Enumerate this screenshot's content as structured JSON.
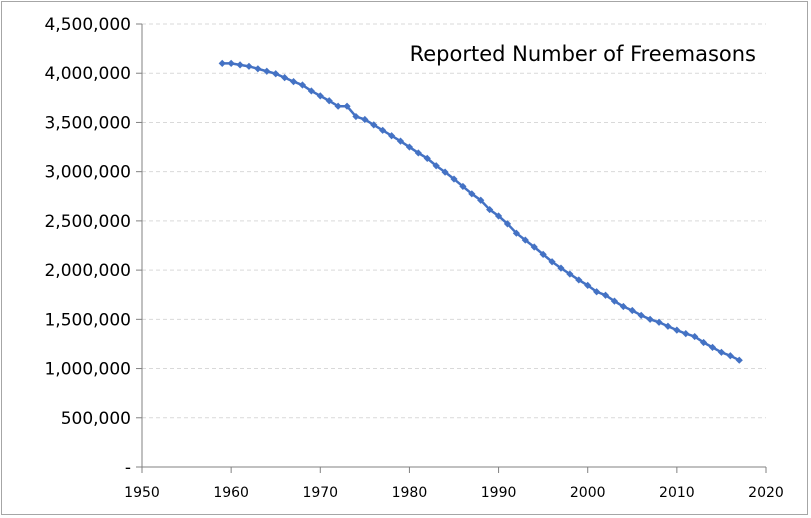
{
  "chart_data": {
    "type": "line",
    "title": "Reported Number of Freemasons",
    "xlabel": "",
    "ylabel": "",
    "xlim": [
      1950,
      2020
    ],
    "ylim": [
      0,
      4500000
    ],
    "x_ticks": [
      "1950",
      "1960",
      "1970",
      "1980",
      "1990",
      "2000",
      "2010",
      "2020"
    ],
    "y_ticks": [
      "-",
      "500,000",
      "1,000,000",
      "1,500,000",
      "2,000,000",
      "2,500,000",
      "3,000,000",
      "3,500,000",
      "4,000,000",
      "4,500,000"
    ],
    "grid": "horizontal dashed",
    "legend": "none",
    "series": [
      {
        "color": "#4472c4",
        "marker": "diamond",
        "x": [
          1959,
          1960,
          1961,
          1962,
          1963,
          1964,
          1965,
          1966,
          1967,
          1968,
          1969,
          1970,
          1971,
          1972,
          1973,
          1974,
          1975,
          1976,
          1977,
          1978,
          1979,
          1980,
          1981,
          1982,
          1983,
          1984,
          1985,
          1986,
          1987,
          1988,
          1989,
          1990,
          1991,
          1992,
          1993,
          1994,
          1995,
          1996,
          1997,
          1998,
          1999,
          2000,
          2001,
          2002,
          2003,
          2004,
          2005,
          2006,
          2007,
          2008,
          2009,
          2010,
          2011,
          2012,
          2013,
          2014,
          2015,
          2016,
          2017
        ],
        "values": [
          4100000,
          4100000,
          4085000,
          4070000,
          4045000,
          4020000,
          3995000,
          3955000,
          3915000,
          3880000,
          3820000,
          3770000,
          3720000,
          3665000,
          3665000,
          3560000,
          3530000,
          3475000,
          3420000,
          3365000,
          3310000,
          3250000,
          3190000,
          3135000,
          3060000,
          2995000,
          2925000,
          2850000,
          2775000,
          2710000,
          2615000,
          2550000,
          2470000,
          2375000,
          2305000,
          2235000,
          2160000,
          2085000,
          2020000,
          1960000,
          1900000,
          1845000,
          1780000,
          1745000,
          1685000,
          1630000,
          1590000,
          1540000,
          1500000,
          1470000,
          1430000,
          1390000,
          1355000,
          1325000,
          1265000,
          1215000,
          1165000,
          1130000,
          1085000
        ]
      }
    ]
  }
}
